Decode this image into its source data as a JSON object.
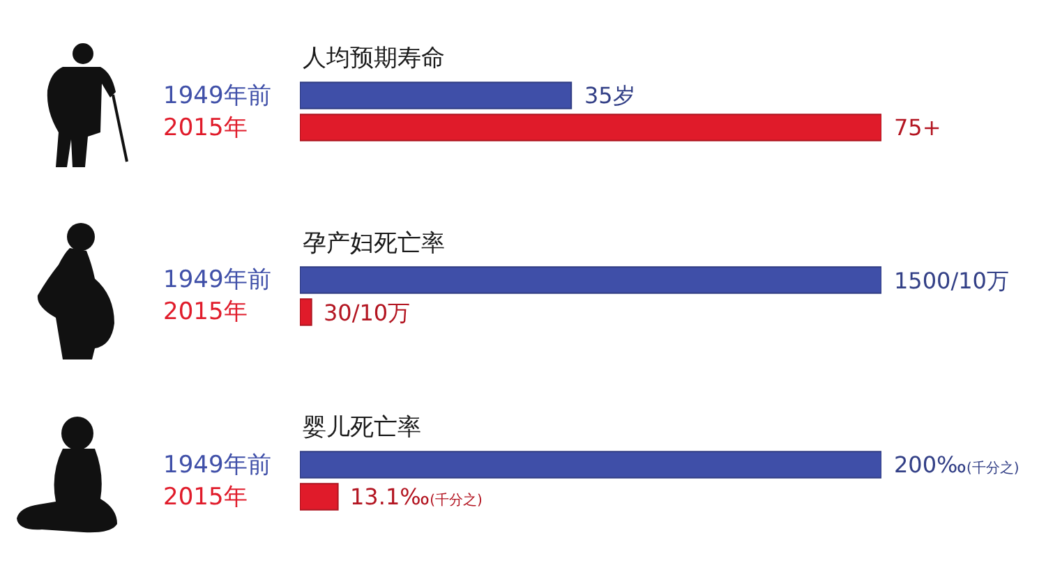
{
  "chart_data": [
    {
      "type": "bar",
      "orientation": "horizontal",
      "title": "人均预期寿命",
      "categories": [
        "1949年前",
        "2015年"
      ],
      "values": [
        35,
        75
      ],
      "colors": [
        "#3f4fa8",
        "#e01b2a"
      ],
      "value_labels": [
        "35岁",
        "75+"
      ],
      "tick_labels": "y"
    },
    {
      "type": "bar",
      "orientation": "horizontal",
      "title": "孕产妇死亡率",
      "categories": [
        "1949年前",
        "2015年"
      ],
      "values": [
        1500,
        30
      ],
      "colors": [
        "#3f4fa8",
        "#e01b2a"
      ],
      "value_labels": [
        "1500/10万",
        "30/10万"
      ],
      "tick_labels": "y"
    },
    {
      "type": "bar",
      "orientation": "horizontal",
      "title": "婴儿死亡率",
      "categories": [
        "1949年前",
        "2015年"
      ],
      "values": [
        200,
        13.1
      ],
      "colors": [
        "#3f4fa8",
        "#e01b2a"
      ],
      "value_labels": [
        "200‰(千分之)",
        "13.1‰(千分之)"
      ],
      "tick_labels": "y"
    }
  ]
}
